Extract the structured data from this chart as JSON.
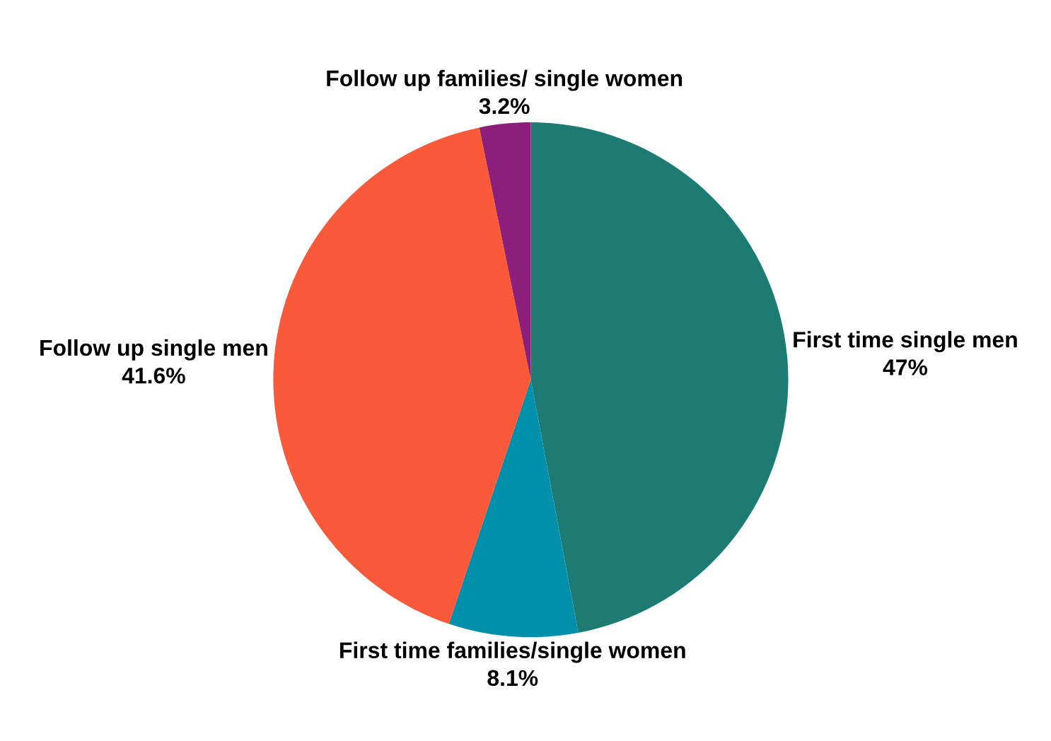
{
  "chart_data": {
    "type": "pie",
    "categories": [
      "First time single men",
      "First time families/single women",
      "Follow up single men",
      "Follow up families/ single women"
    ],
    "values": [
      47,
      8.1,
      41.6,
      3.2
    ],
    "value_labels": [
      "47%",
      "8.1%",
      "41.6%",
      "3.2%"
    ],
    "colors": [
      "#1e7b74",
      "#0090ab",
      "#fa5a3a",
      "#8b1f7a"
    ]
  }
}
